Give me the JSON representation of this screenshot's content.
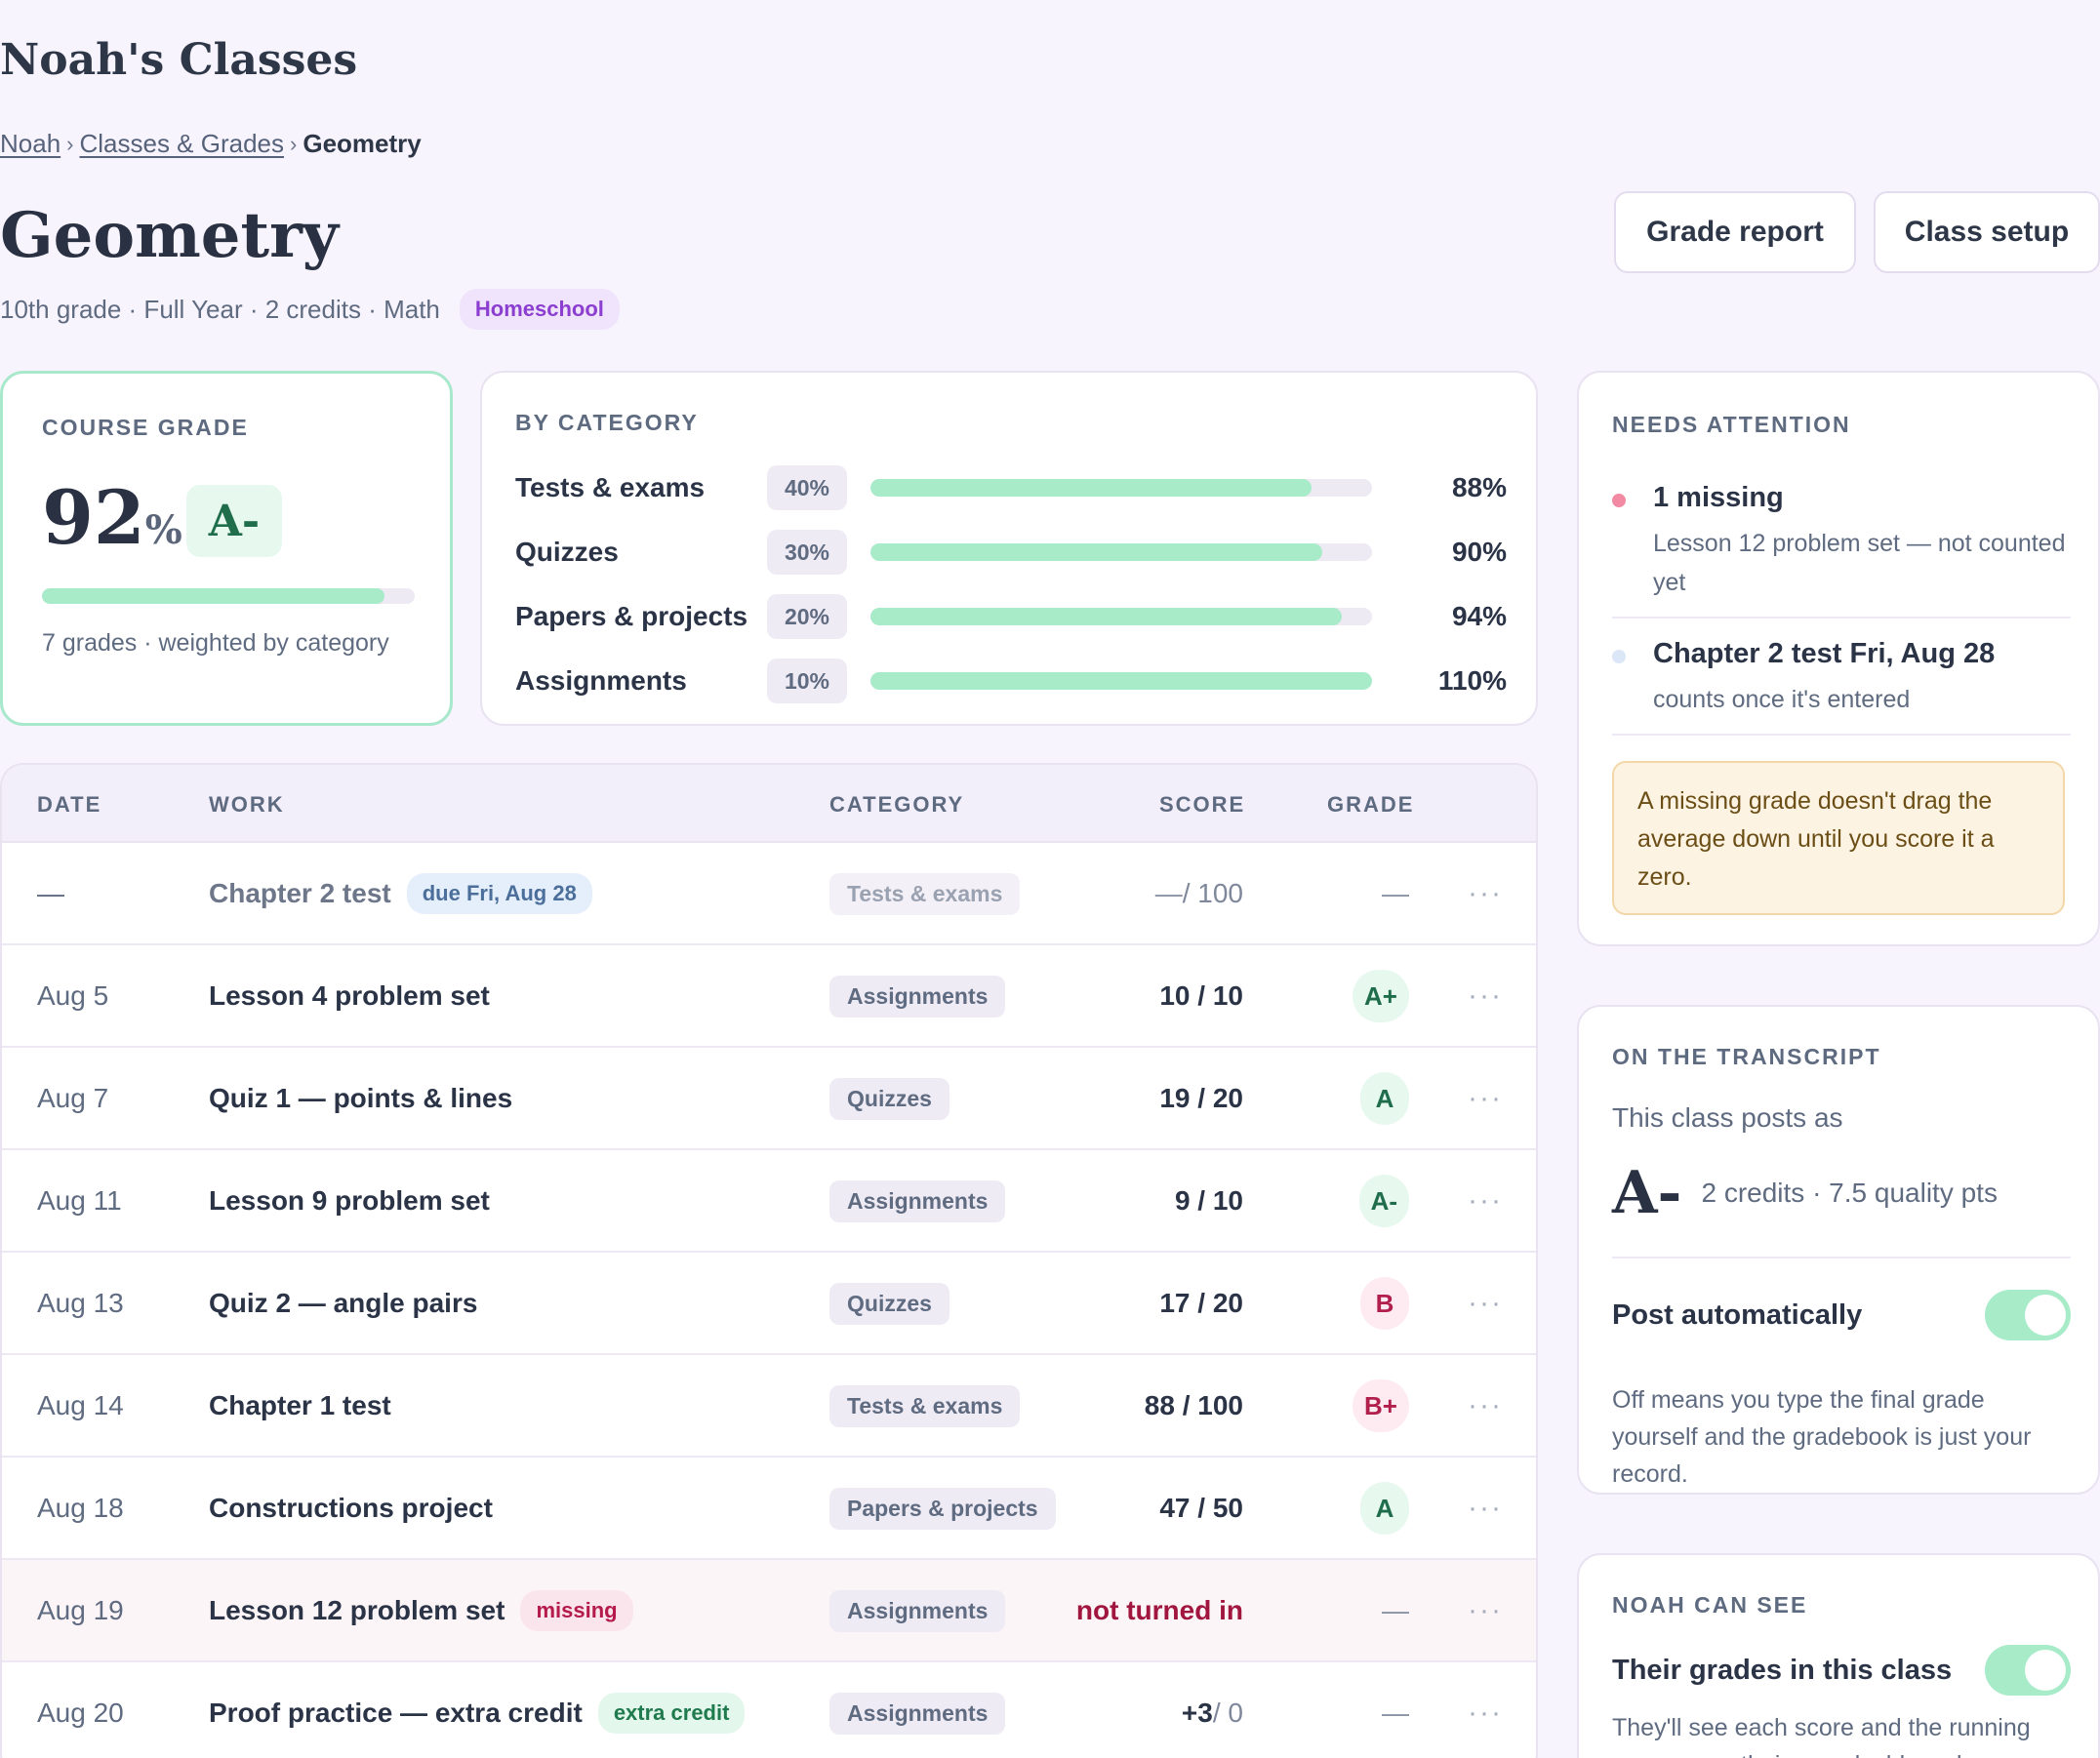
{
  "app": {
    "title": "Noah's Classes"
  },
  "breadcrumb": {
    "items": [
      "Noah",
      "Classes & Grades"
    ],
    "current": "Geometry",
    "separator": "›"
  },
  "page": {
    "title": "Geometry",
    "meta": "10th grade · Full Year · 2 credits · Math",
    "tag": "Homeschool"
  },
  "actions": {
    "grade_report": "Grade report",
    "class_setup": "Class setup"
  },
  "course_grade": {
    "label": "COURSE GRADE",
    "percent": "92",
    "percent_sign": "%",
    "percent_value": 92,
    "letter": "A-",
    "footer": "7 grades · weighted by category"
  },
  "by_category": {
    "label": "BY CATEGORY",
    "rows": [
      {
        "name": "Tests & exams",
        "weight": "40%",
        "value": "88%",
        "pct": 88
      },
      {
        "name": "Quizzes",
        "weight": "30%",
        "value": "90%",
        "pct": 90
      },
      {
        "name": "Papers & projects",
        "weight": "20%",
        "value": "94%",
        "pct": 94
      },
      {
        "name": "Assignments",
        "weight": "10%",
        "value": "110%",
        "pct": 110
      }
    ]
  },
  "table": {
    "headers": {
      "date": "DATE",
      "work": "WORK",
      "category": "CATEGORY",
      "score": "SCORE",
      "grade": "GRADE"
    },
    "more_glyph": "···",
    "rows": [
      {
        "date": "—",
        "work": "Chapter 2 test",
        "tag": "due Fri, Aug 28",
        "tag_type": "due",
        "category": "Tests & exams",
        "score_main": "— ",
        "score_rest": "/ 100",
        "score_style": "dim",
        "grade": "—",
        "grade_style": "dash",
        "row_style": "pending"
      },
      {
        "date": "Aug 5",
        "work": "Lesson 4 problem set",
        "category": "Assignments",
        "score_main": "10 / 10",
        "grade": "A+",
        "grade_style": "green"
      },
      {
        "date": "Aug 7",
        "work": "Quiz 1 — points & lines",
        "category": "Quizzes",
        "score_main": "19 / 20",
        "grade": "A",
        "grade_style": "green"
      },
      {
        "date": "Aug 11",
        "work": "Lesson 9 problem set",
        "category": "Assignments",
        "score_main": "9 / 10",
        "grade": "A-",
        "grade_style": "green"
      },
      {
        "date": "Aug 13",
        "work": "Quiz 2 — angle pairs",
        "category": "Quizzes",
        "score_main": "17 / 20",
        "grade": "B",
        "grade_style": "red"
      },
      {
        "date": "Aug 14",
        "work": "Chapter 1 test",
        "category": "Tests & exams",
        "score_main": "88 / 100",
        "grade": "B+",
        "grade_style": "red"
      },
      {
        "date": "Aug 18",
        "work": "Constructions project",
        "category": "Papers & projects",
        "score_main": "47 / 50",
        "grade": "A",
        "grade_style": "green"
      },
      {
        "date": "Aug 19",
        "work": "Lesson 12 problem set",
        "tag": "missing",
        "tag_type": "missing",
        "category": "Assignments",
        "score_main": "not turned in",
        "score_style": "red",
        "grade": "—",
        "grade_style": "dash",
        "row_style": "missing"
      },
      {
        "date": "Aug 20",
        "work": "Proof practice — extra credit",
        "tag": "extra credit",
        "tag_type": "extra",
        "category": "Assignments",
        "score_main": "+3",
        "score_rest": " / 0",
        "grade": "—",
        "grade_style": "dash"
      }
    ]
  },
  "needs_attention": {
    "label": "NEEDS ATTENTION",
    "items": [
      {
        "title": "1 missing",
        "sub": "Lesson 12 problem set — not counted yet",
        "dot_color": "#f28aa3"
      },
      {
        "title": "Chapter 2 test Fri, Aug 28",
        "sub": "counts once it's entered",
        "dot_color": "#dbe6f7"
      }
    ],
    "note": "A missing grade doesn't drag the average down until you score it a zero."
  },
  "transcript": {
    "label": "ON THE TRANSCRIPT",
    "sub": "This class posts as",
    "letter": "A-",
    "meta": "2 credits · 7.5 quality pts",
    "toggle_label": "Post automatically",
    "toggle_on": true,
    "help": "Off means you type the final grade yourself and the gradebook is just your record."
  },
  "noah_can_see": {
    "label": "NOAH CAN SEE",
    "toggle_label": "Their grades in this class",
    "toggle_on": true,
    "help": "They'll see each score and the running average on their own dashboard."
  },
  "colors": {
    "accent_green": "#a7ebc9",
    "missing_red": "#b41a4c",
    "homeschool_purple": "#8b3ecf"
  }
}
